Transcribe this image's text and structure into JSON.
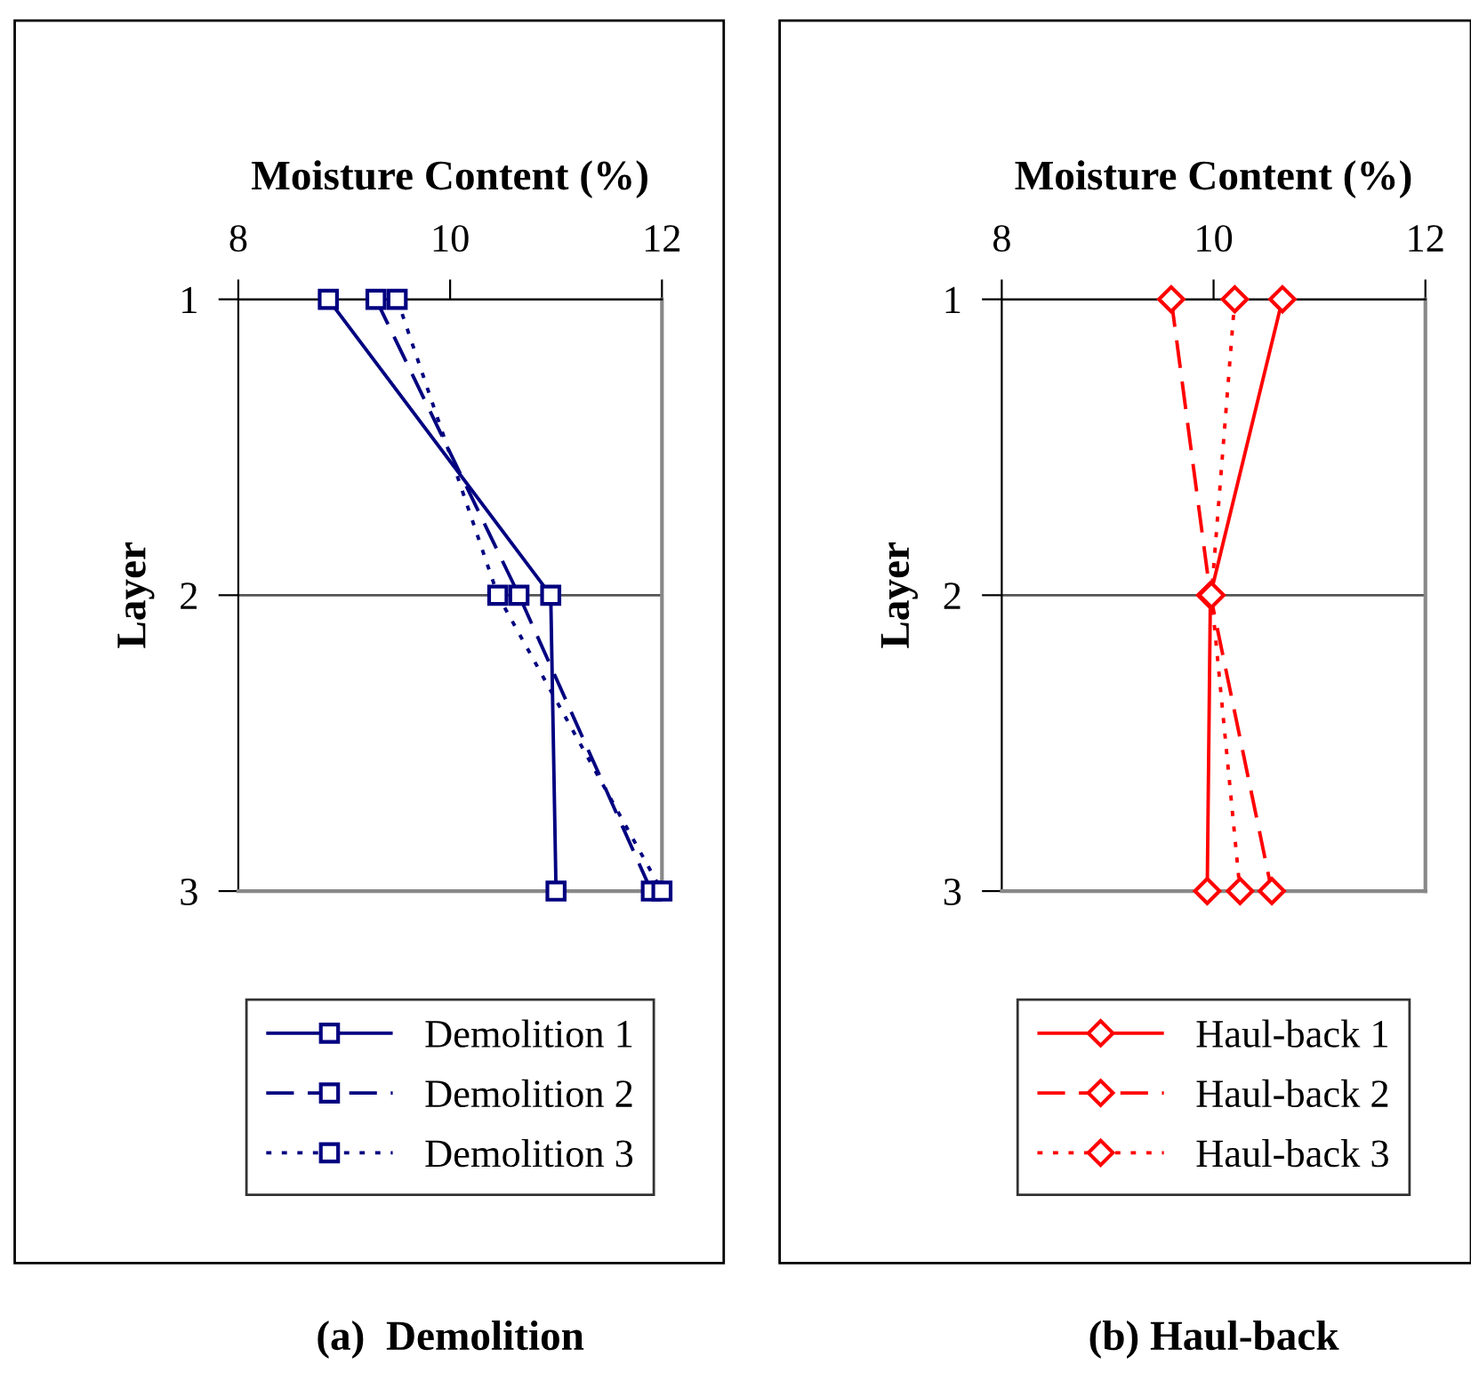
{
  "chart_data": [
    {
      "type": "line",
      "orientation": "horizontal",
      "title": "(a)  Demolition",
      "xlabel": "Moisture Content (%)",
      "ylabel": "Layer",
      "categories": [
        "1",
        "2",
        "3"
      ],
      "xlim": [
        8,
        12
      ],
      "xticks": [
        8,
        10,
        12
      ],
      "grid": "y",
      "legend": "bottom",
      "marker": "square",
      "series": [
        {
          "name": "Demolition 1",
          "color": "#000080",
          "line_style": "solid",
          "values": [
            8.85,
            10.95,
            11.0
          ]
        },
        {
          "name": "Demolition 2",
          "color": "#000080",
          "line_style": "dashed",
          "values": [
            9.3,
            10.65,
            11.9
          ]
        },
        {
          "name": "Demolition 3",
          "color": "#000080",
          "line_style": "dotted",
          "values": [
            9.5,
            10.45,
            12.0
          ]
        }
      ]
    },
    {
      "type": "line",
      "orientation": "horizontal",
      "title": "(b) Haul-back",
      "xlabel": "Moisture Content (%)",
      "ylabel": "Layer",
      "categories": [
        "1",
        "2",
        "3"
      ],
      "xlim": [
        8,
        12
      ],
      "xticks": [
        8,
        10,
        12
      ],
      "grid": "y",
      "legend": "bottom",
      "marker": "diamond",
      "series": [
        {
          "name": "Haul-back 1",
          "color": "#ff0000",
          "line_style": "solid",
          "values": [
            10.65,
            9.97,
            9.94
          ]
        },
        {
          "name": "Haul-back 2",
          "color": "#ff0000",
          "line_style": "dashed",
          "values": [
            9.6,
            9.97,
            10.55
          ]
        },
        {
          "name": "Haul-back 3",
          "color": "#ff0000",
          "line_style": "dotted",
          "values": [
            10.2,
            9.98,
            10.25
          ]
        }
      ]
    }
  ]
}
